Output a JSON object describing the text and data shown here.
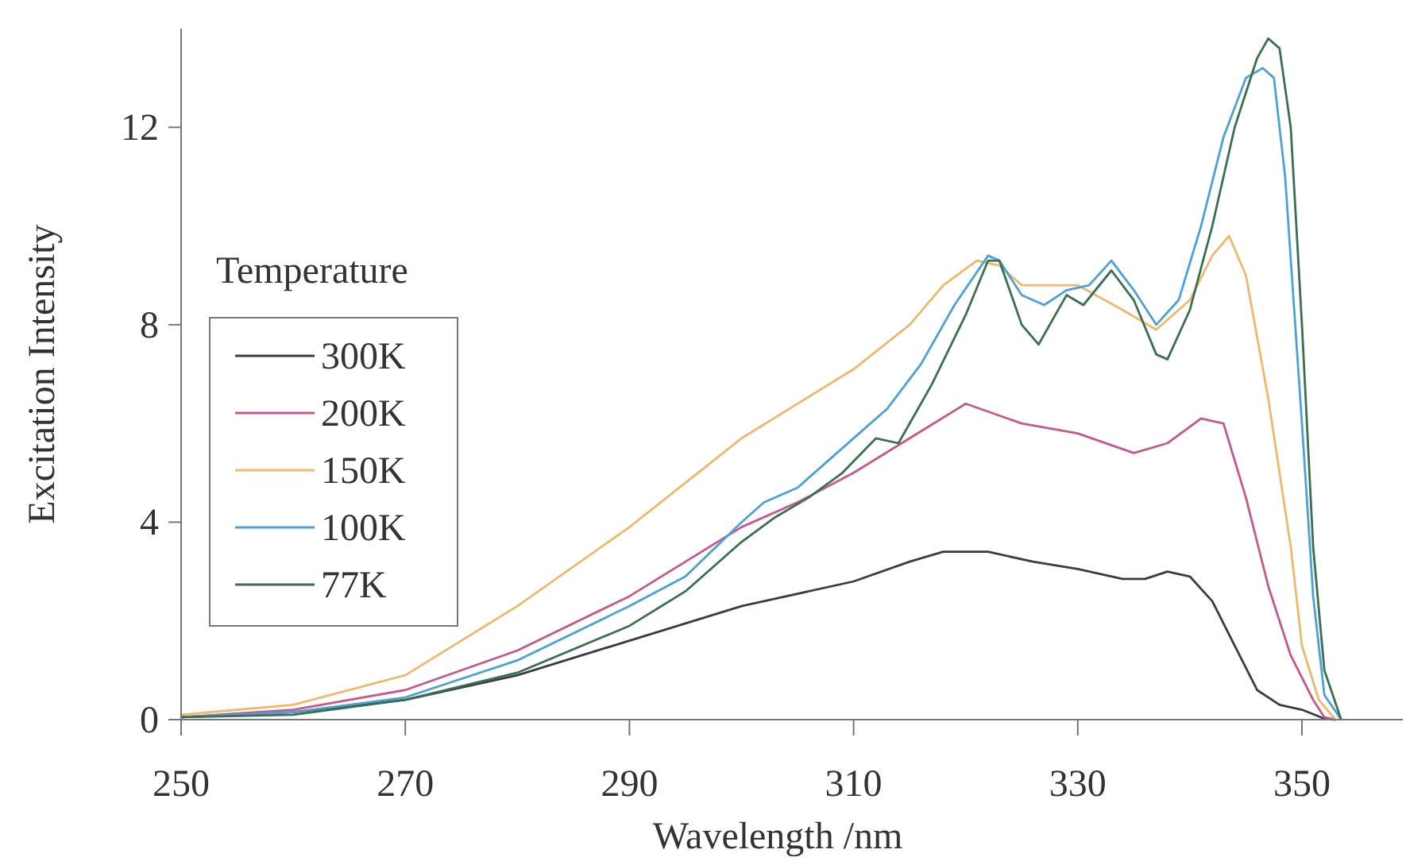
{
  "chart_data": {
    "type": "line",
    "xlabel": "Wavelength /nm",
    "ylabel": "Excitation Intensity",
    "legend_title": "Temperature",
    "legend": "left",
    "xlim": [
      250,
      359
    ],
    "xticks": [
      250,
      270,
      290,
      310,
      330,
      350
    ],
    "ylim": [
      0,
      14
    ],
    "yticks": [
      0,
      4,
      8,
      12
    ],
    "grid": false,
    "marker": "none",
    "line_style": "solid",
    "series": [
      {
        "name": "300K",
        "color": "#3a3a48",
        "x": [
          250,
          260,
          270,
          280,
          290,
          300,
          310,
          315,
          318,
          322,
          326,
          330,
          334,
          336,
          338,
          340,
          342,
          344,
          346,
          348,
          350,
          352,
          353
        ],
        "values": [
          0.05,
          0.15,
          0.4,
          0.9,
          1.6,
          2.3,
          2.8,
          3.2,
          3.4,
          3.4,
          3.2,
          3.05,
          2.85,
          2.85,
          3.0,
          2.9,
          2.4,
          1.5,
          0.6,
          0.3,
          0.2,
          0.02,
          0
        ]
      },
      {
        "name": "200K",
        "color": "#c8588a",
        "x": [
          250,
          260,
          270,
          280,
          290,
          300,
          305,
          310,
          315,
          320,
          325,
          330,
          335,
          338,
          341,
          343,
          345,
          347,
          349,
          351,
          352,
          353
        ],
        "values": [
          0.05,
          0.2,
          0.6,
          1.4,
          2.5,
          3.9,
          4.4,
          5.0,
          5.7,
          6.4,
          6.0,
          5.8,
          5.4,
          5.6,
          6.1,
          6.0,
          4.5,
          2.7,
          1.3,
          0.4,
          0.05,
          0
        ]
      },
      {
        "name": "150K",
        "color": "#f0b86a",
        "x": [
          250,
          260,
          270,
          280,
          290,
          300,
          305,
          310,
          315,
          318,
          321,
          323,
          325,
          330,
          334,
          337,
          340,
          342,
          343.5,
          345,
          347,
          349,
          350,
          351.5,
          353
        ],
        "values": [
          0.1,
          0.3,
          0.9,
          2.3,
          3.9,
          5.7,
          6.4,
          7.1,
          8.0,
          8.8,
          9.3,
          9.2,
          8.8,
          8.8,
          8.3,
          7.9,
          8.5,
          9.4,
          9.8,
          9.0,
          6.5,
          3.5,
          1.5,
          0.4,
          0
        ]
      },
      {
        "name": "100K",
        "color": "#4aa2d8",
        "x": [
          250,
          260,
          270,
          280,
          290,
          295,
          300,
          302,
          305,
          308,
          311,
          313,
          316,
          319,
          322,
          323,
          325,
          327,
          329,
          331,
          333,
          335,
          337,
          339,
          341,
          343,
          345,
          346.5,
          347.5,
          348.5,
          350,
          351,
          352,
          353.5
        ],
        "values": [
          0.05,
          0.15,
          0.45,
          1.2,
          2.3,
          2.9,
          4.0,
          4.4,
          4.7,
          5.3,
          5.9,
          6.3,
          7.2,
          8.4,
          9.4,
          9.3,
          8.6,
          8.4,
          8.7,
          8.8,
          9.3,
          8.7,
          8.0,
          8.5,
          10.0,
          11.8,
          13.0,
          13.2,
          13.0,
          11.0,
          6.0,
          2.5,
          0.5,
          0
        ]
      },
      {
        "name": "77K",
        "color": "#3a7050",
        "x": [
          250,
          260,
          270,
          280,
          290,
          295,
          300,
          303,
          306,
          309,
          312,
          314,
          317,
          320,
          322,
          323,
          325,
          326.5,
          328,
          329,
          330.5,
          333,
          335,
          337,
          338,
          340,
          342,
          344,
          346,
          347,
          348,
          349,
          350,
          351,
          352,
          353.5
        ],
        "values": [
          0.05,
          0.1,
          0.4,
          0.95,
          1.9,
          2.6,
          3.6,
          4.1,
          4.5,
          5.0,
          5.7,
          5.6,
          6.8,
          8.2,
          9.3,
          9.3,
          8.0,
          7.6,
          8.2,
          8.6,
          8.4,
          9.1,
          8.5,
          7.4,
          7.3,
          8.3,
          10.0,
          12.0,
          13.4,
          13.8,
          13.6,
          12.0,
          8.0,
          3.5,
          1.0,
          0
        ]
      }
    ]
  }
}
